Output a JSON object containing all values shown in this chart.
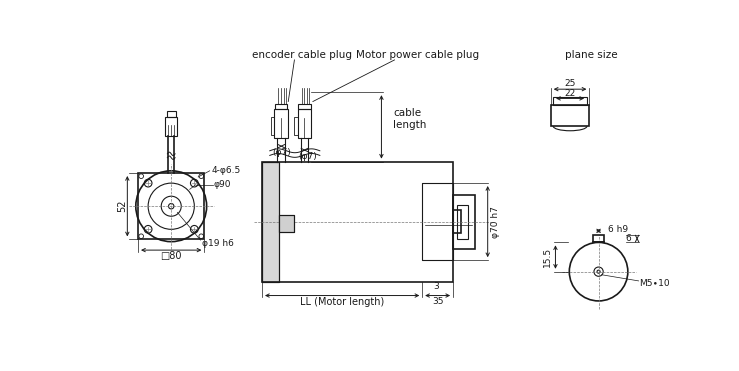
{
  "background_color": "#ffffff",
  "line_color": "#1a1a1a",
  "text_color": "#1a1a1a",
  "annotations": {
    "encoder_cable_plug": "encoder cable plug",
    "motor_power_cable_plug": "Motor power cable plug",
    "cable_length": "cable\nlength",
    "plane_size": "plane size",
    "dim_52": "52",
    "dim_4phi65": "4-φ6.5",
    "dim_phi90": "φ90",
    "dim_phi19h6": "φ19 h6",
    "dim_80": "□80",
    "dim_phi7_1": "(φ7)",
    "dim_phi7_2": "(φ7)",
    "dim_phi70h7": "φ70 h7",
    "dim_LL": "LL (Motor length)",
    "dim_3": "3",
    "dim_35": "35",
    "dim_25": "25",
    "dim_22": "22",
    "dim_6h9": "6 h9",
    "dim_6": "6",
    "dim_155": "15.5",
    "dim_M5": "M5∙10"
  }
}
